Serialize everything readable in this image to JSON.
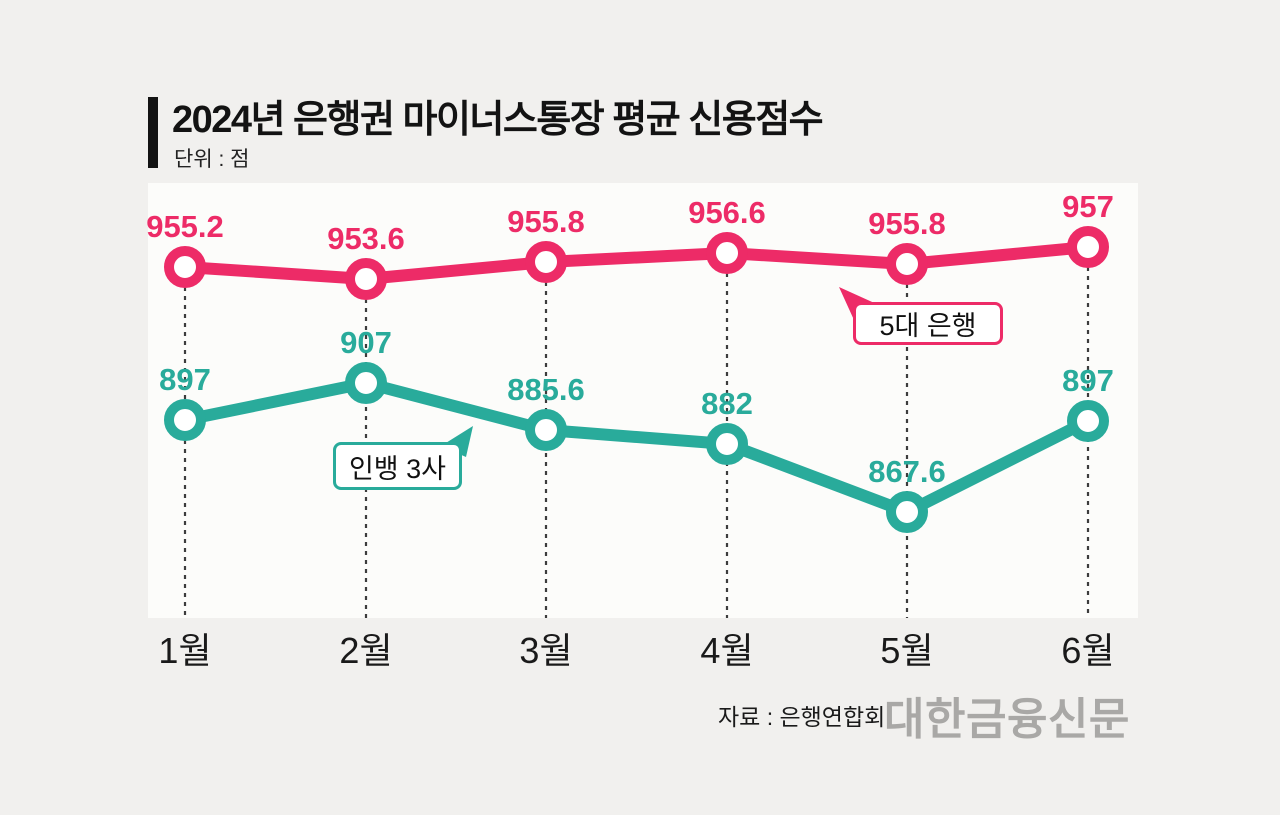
{
  "chart_data": {
    "type": "line",
    "title": "2024년 은행권 마이너스통장 평균 신용점수",
    "unit_label": "단위 : 점",
    "categories": [
      "1월",
      "2월",
      "3월",
      "4월",
      "5월",
      "6월"
    ],
    "series": [
      {
        "name": "5대 은행",
        "color": "#ed2b67",
        "values": [
          955.2,
          953.6,
          955.8,
          956.6,
          955.8,
          957
        ]
      },
      {
        "name": "인뱅 3사",
        "color": "#29ab9b",
        "values": [
          897,
          907,
          885.6,
          882,
          867.6,
          897
        ]
      }
    ],
    "grid": "vertical-dashed-droplines",
    "legend_position": "inline-callout-bubbles",
    "annotations": [
      {
        "type": "callout",
        "text": "5대 은행",
        "points_to": "5월 5대 은행 line"
      },
      {
        "type": "callout",
        "text": "인뱅 3사",
        "points_to": "2월~3월 인뱅 3사 line"
      }
    ]
  },
  "footer": {
    "source": "자료 : 은행연합회",
    "logo": "대한금융신문"
  },
  "colors": {
    "bank5_pink": "#ed2b67",
    "inbank3_teal": "#29ab9b",
    "logo_gray": "#a9a8a6",
    "page_bg": "#f1f0ee"
  }
}
